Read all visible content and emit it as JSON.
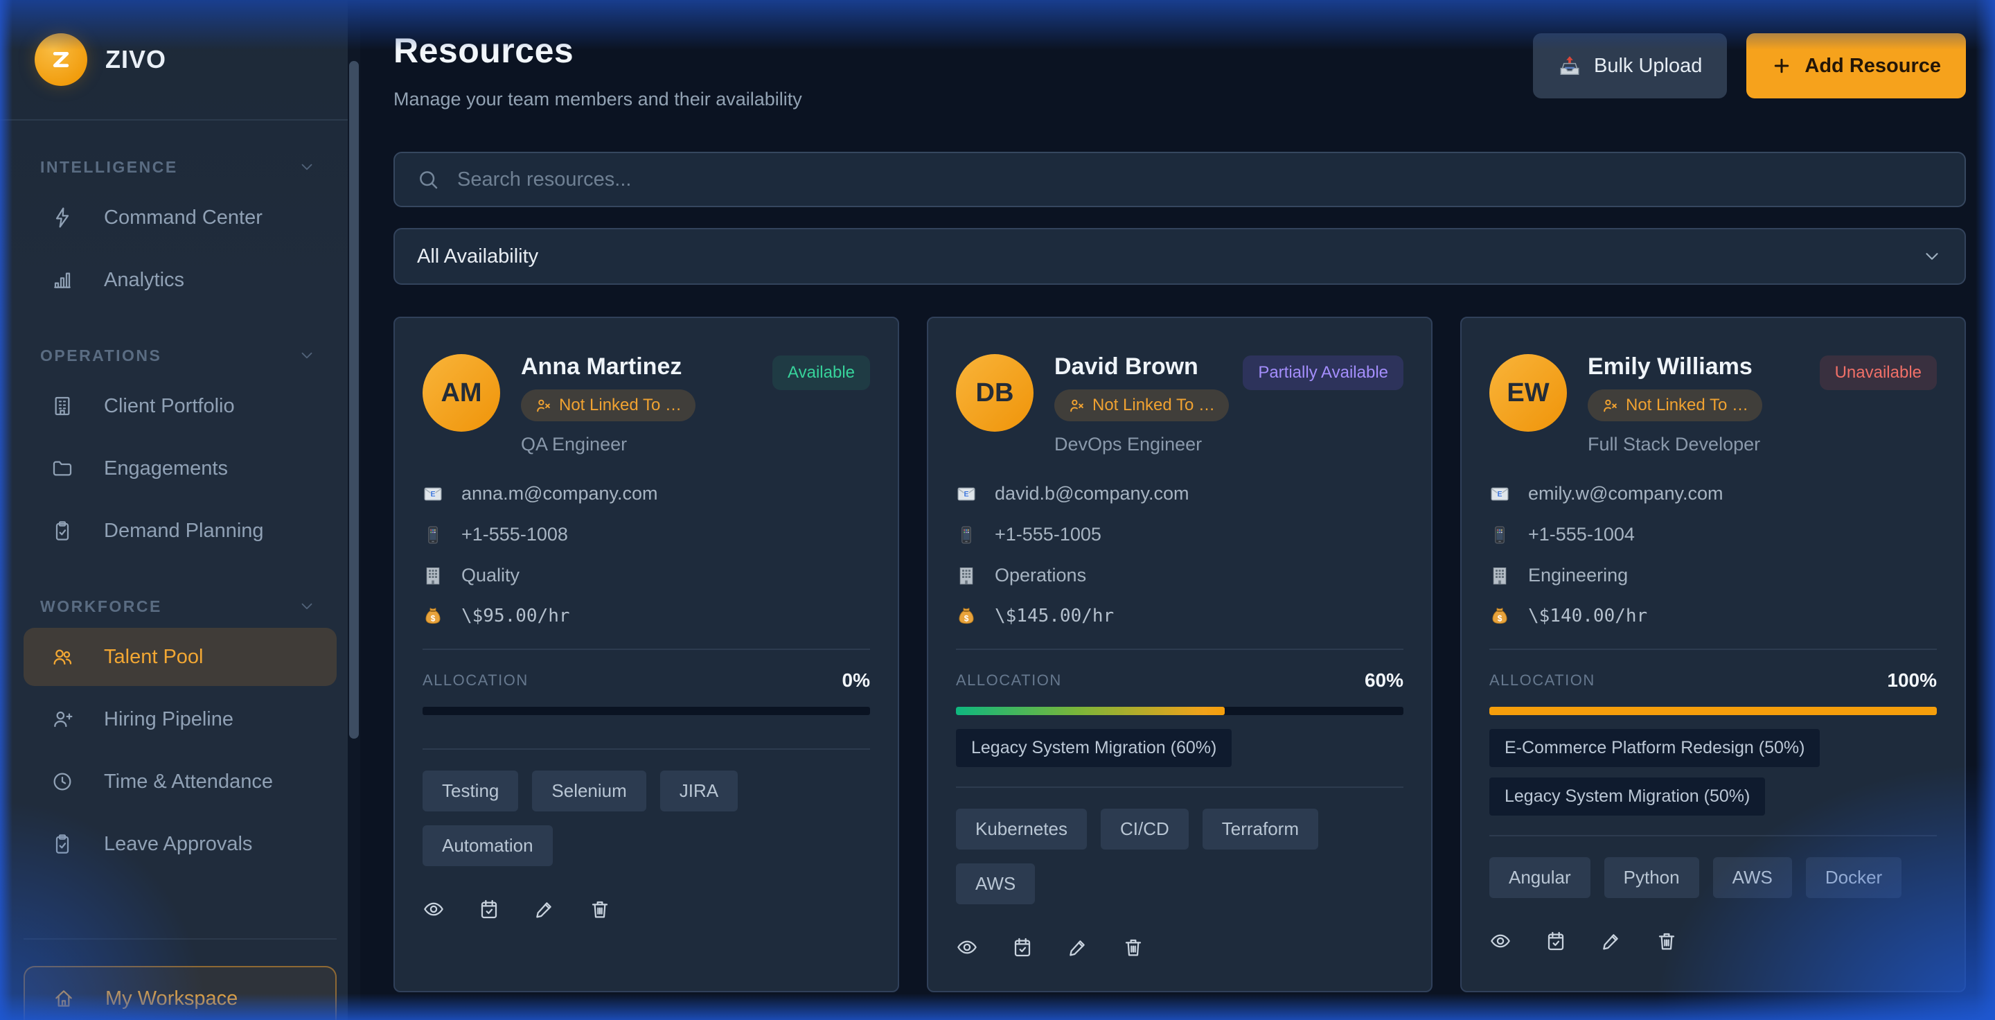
{
  "app": {
    "name": "ZIVO"
  },
  "sidebar": {
    "sections": [
      {
        "label": "INTELLIGENCE",
        "items": [
          {
            "icon": "zap",
            "label": "Command Center",
            "state": ""
          },
          {
            "icon": "bar-chart",
            "label": "Analytics",
            "state": ""
          }
        ]
      },
      {
        "label": "OPERATIONS",
        "items": [
          {
            "icon": "building",
            "label": "Client Portfolio",
            "state": ""
          },
          {
            "icon": "folder",
            "label": "Engagements",
            "state": ""
          },
          {
            "icon": "clipboard-check",
            "label": "Demand Planning",
            "state": ""
          }
        ]
      },
      {
        "label": "WORKFORCE",
        "items": [
          {
            "icon": "users",
            "label": "Talent Pool",
            "state": "active"
          },
          {
            "icon": "user-plus",
            "label": "Hiring Pipeline",
            "state": ""
          },
          {
            "icon": "clock",
            "label": "Time & Attendance",
            "state": ""
          },
          {
            "icon": "clipboard-check",
            "label": "Leave Approvals",
            "state": ""
          }
        ]
      }
    ],
    "footer": {
      "icon": "home",
      "label": "My Workspace"
    }
  },
  "header": {
    "title": "Resources",
    "subtitle": "Manage your team members and their availability",
    "bulk_upload_label": "Bulk Upload",
    "add_resource_label": "Add Resource"
  },
  "filters": {
    "search_placeholder": "Search resources...",
    "availability_value": "All Availability"
  },
  "labels": {
    "allocation": "ALLOCATION"
  },
  "resources": [
    {
      "initials": "AM",
      "name": "Anna Martinez",
      "status": {
        "label": "Available",
        "type": "available"
      },
      "link_badge": "Not Linked To …",
      "role": "QA Engineer",
      "email": "anna.m@company.com",
      "phone": "+1-555-1008",
      "department": "Quality",
      "rate": "\\$95.00/hr",
      "allocation": {
        "percent": "0%",
        "value": 0,
        "fill": "empty"
      },
      "projects": [],
      "skills": [
        "Testing",
        "Selenium",
        "JIRA",
        "Automation"
      ]
    },
    {
      "initials": "DB",
      "name": "David Brown",
      "status": {
        "label": "Partially Available",
        "type": "partial"
      },
      "link_badge": "Not Linked To …",
      "role": "DevOps Engineer",
      "email": "david.b@company.com",
      "phone": "+1-555-1005",
      "department": "Operations",
      "rate": "\\$145.00/hr",
      "allocation": {
        "percent": "60%",
        "value": 60,
        "fill": "gradient"
      },
      "projects": [
        "Legacy System Migration (60%)"
      ],
      "skills": [
        "Kubernetes",
        "CI/CD",
        "Terraform",
        "AWS"
      ]
    },
    {
      "initials": "EW",
      "name": "Emily Williams",
      "status": {
        "label": "Unavailable",
        "type": "unavailable"
      },
      "link_badge": "Not Linked To …",
      "role": "Full Stack Developer",
      "email": "emily.w@company.com",
      "phone": "+1-555-1004",
      "department": "Engineering",
      "rate": "\\$140.00/hr",
      "allocation": {
        "percent": "100%",
        "value": 100,
        "fill": "solid"
      },
      "projects": [
        "E-Commerce Platform Redesign (50%)",
        "Legacy System Migration (50%)"
      ],
      "skills": [
        "Angular",
        "Python",
        "AWS",
        "Docker"
      ]
    }
  ],
  "colors": {
    "accent": "#f59e0b",
    "status_available": "#34d399",
    "status_partially_available": "#a78bfa",
    "status_unavailable": "#f87171",
    "allocation_gradient": [
      "#10b981",
      "#f59e0b"
    ],
    "window_glow_blue": "#1e58d2"
  }
}
